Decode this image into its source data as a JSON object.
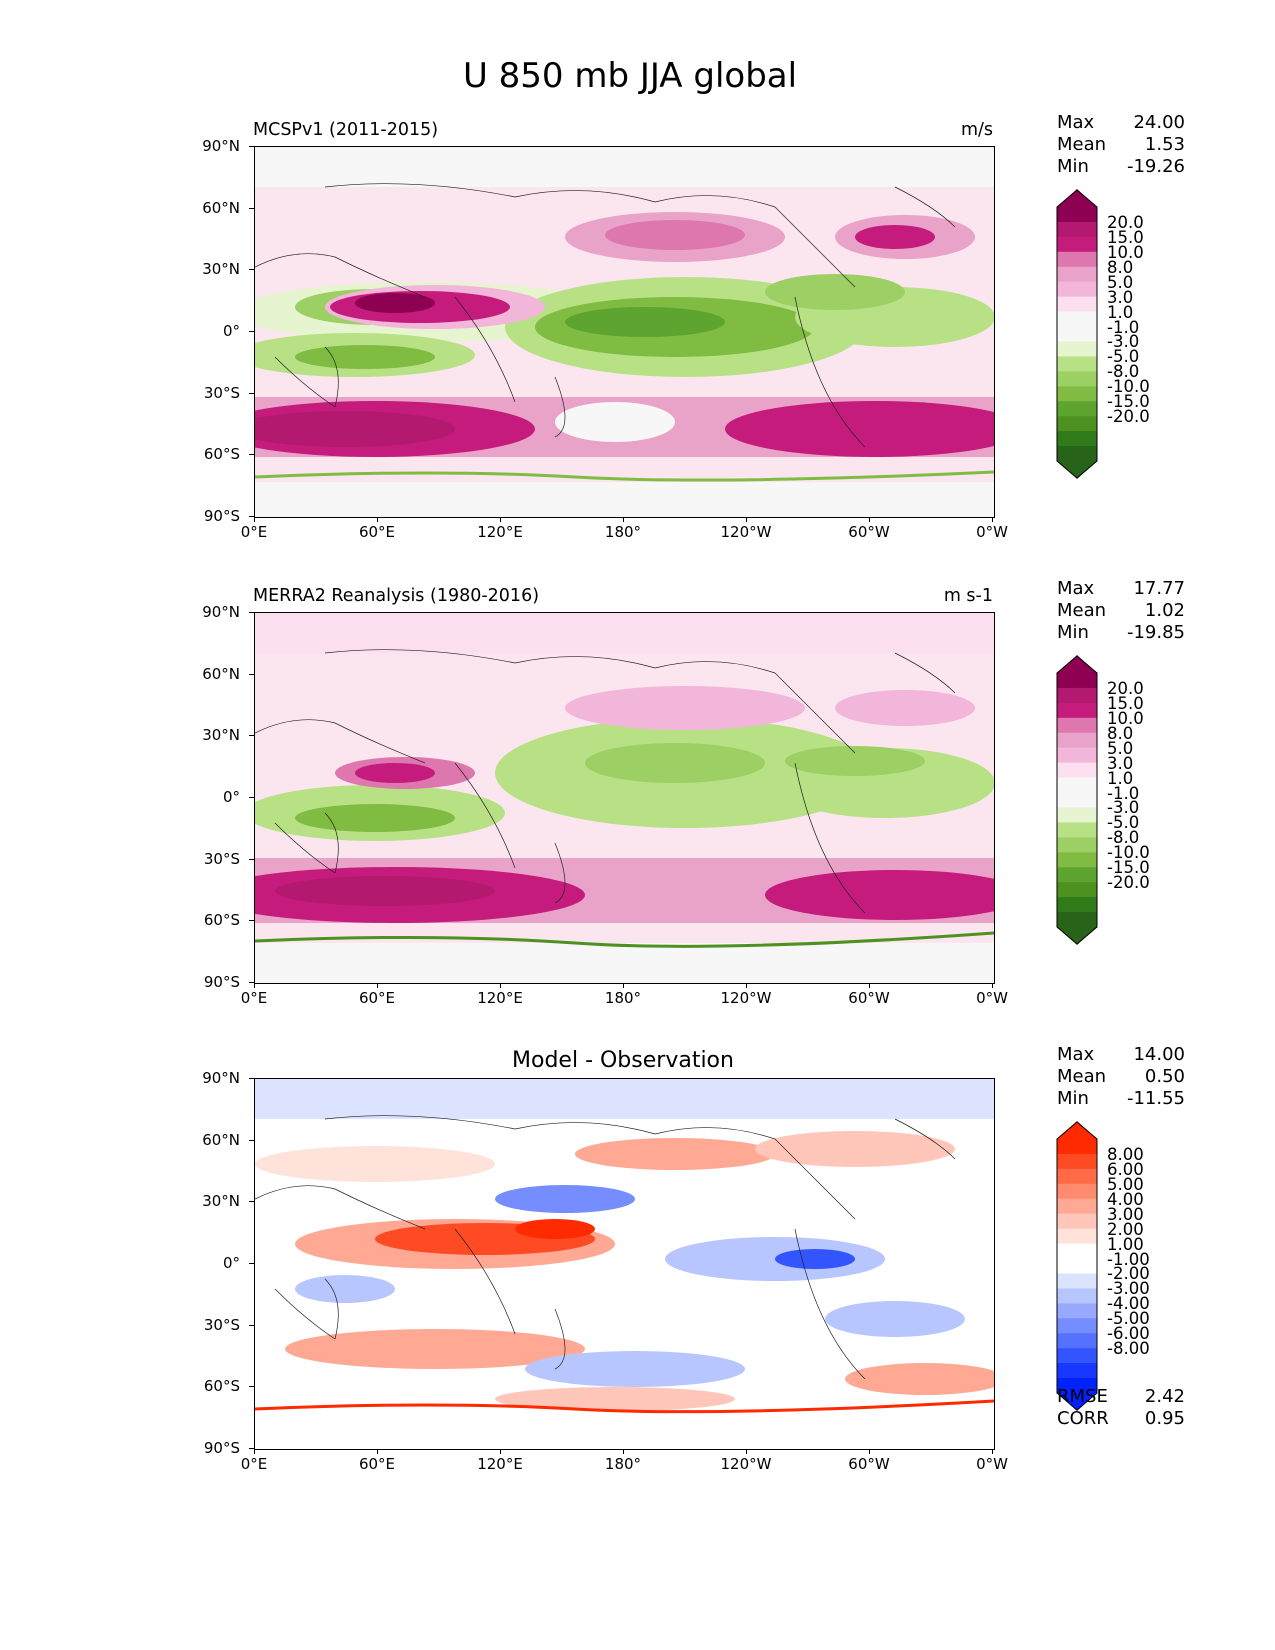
{
  "figure": {
    "title": "U 850 mb JJA global"
  },
  "axes": {
    "lat_labels": [
      "90°N",
      "60°N",
      "30°N",
      "0°",
      "30°S",
      "60°S",
      "90°S"
    ],
    "lon_labels": [
      "0°E",
      "60°E",
      "120°E",
      "180°",
      "120°W",
      "60°W",
      "0°W"
    ]
  },
  "panels": [
    {
      "title_left": "MCSPv1 (2011-2015)",
      "title_right": "m/s",
      "title_center": "",
      "stats": [
        {
          "k": "Max",
          "v": "24.00"
        },
        {
          "k": "Mean",
          "v": "1.53"
        },
        {
          "k": "Min",
          "v": "-19.26"
        }
      ],
      "colorbar_labels": [
        "20.0",
        "15.0",
        "10.0",
        "8.0",
        "5.0",
        "3.0",
        "1.0",
        "-1.0",
        "-3.0",
        "-5.0",
        "-8.0",
        "-10.0",
        "-15.0",
        "-20.0"
      ],
      "colorbar_colors": [
        "#8e0152",
        "#b3196e",
        "#c51b7d",
        "#de77ae",
        "#e9a3c9",
        "#f1b6da",
        "#fde0ef",
        "#f7f7f7",
        "#f7f7f7",
        "#e6f5d0",
        "#b8e186",
        "#9ccf64",
        "#7fbc41",
        "#5ea431",
        "#4d9221",
        "#2f7a19",
        "#276419"
      ],
      "colorbar_top": "#8e0152",
      "colorbar_bottom": "#276419",
      "map_variant": "model"
    },
    {
      "title_left": "MERRA2 Reanalysis (1980-2016)",
      "title_right": "m s-1",
      "title_center": "",
      "stats": [
        {
          "k": "Max",
          "v": "17.77"
        },
        {
          "k": "Mean",
          "v": "1.02"
        },
        {
          "k": "Min",
          "v": "-19.85"
        }
      ],
      "colorbar_labels": [
        "20.0",
        "15.0",
        "10.0",
        "8.0",
        "5.0",
        "3.0",
        "1.0",
        "-1.0",
        "-3.0",
        "-5.0",
        "-8.0",
        "-10.0",
        "-15.0",
        "-20.0"
      ],
      "colorbar_colors": [
        "#8e0152",
        "#b3196e",
        "#c51b7d",
        "#de77ae",
        "#e9a3c9",
        "#f1b6da",
        "#fde0ef",
        "#f7f7f7",
        "#f7f7f7",
        "#e6f5d0",
        "#b8e186",
        "#9ccf64",
        "#7fbc41",
        "#5ea431",
        "#4d9221",
        "#2f7a19",
        "#276419"
      ],
      "colorbar_top": "#8e0152",
      "colorbar_bottom": "#276419",
      "map_variant": "obs"
    },
    {
      "title_left": "",
      "title_right": "",
      "title_center": "Model - Observation",
      "stats": [
        {
          "k": "Max",
          "v": "14.00"
        },
        {
          "k": "Mean",
          "v": "0.50"
        },
        {
          "k": "Min",
          "v": "-11.55"
        }
      ],
      "colorbar_labels": [
        "8.00",
        "6.00",
        "5.00",
        "4.00",
        "3.00",
        "2.00",
        "1.00",
        "-1.00",
        "-2.00",
        "-3.00",
        "-4.00",
        "-5.00",
        "-6.00",
        "-8.00"
      ],
      "colorbar_colors": [
        "#ff2a00",
        "#ff4b24",
        "#ff6a47",
        "#ff8a6d",
        "#ffa994",
        "#ffc6b9",
        "#ffe2da",
        "#ffffff",
        "#ffffff",
        "#dbe3ff",
        "#b8c6ff",
        "#96a9ff",
        "#758dff",
        "#5471ff",
        "#3355ff",
        "#1838ff",
        "#0022ff"
      ],
      "colorbar_top": "#ff2a00",
      "colorbar_bottom": "#0022ff",
      "map_variant": "diff",
      "rmse": [
        {
          "k": "RMSE",
          "v": "2.42"
        },
        {
          "k": "CORR",
          "v": "0.95"
        }
      ]
    }
  ]
}
